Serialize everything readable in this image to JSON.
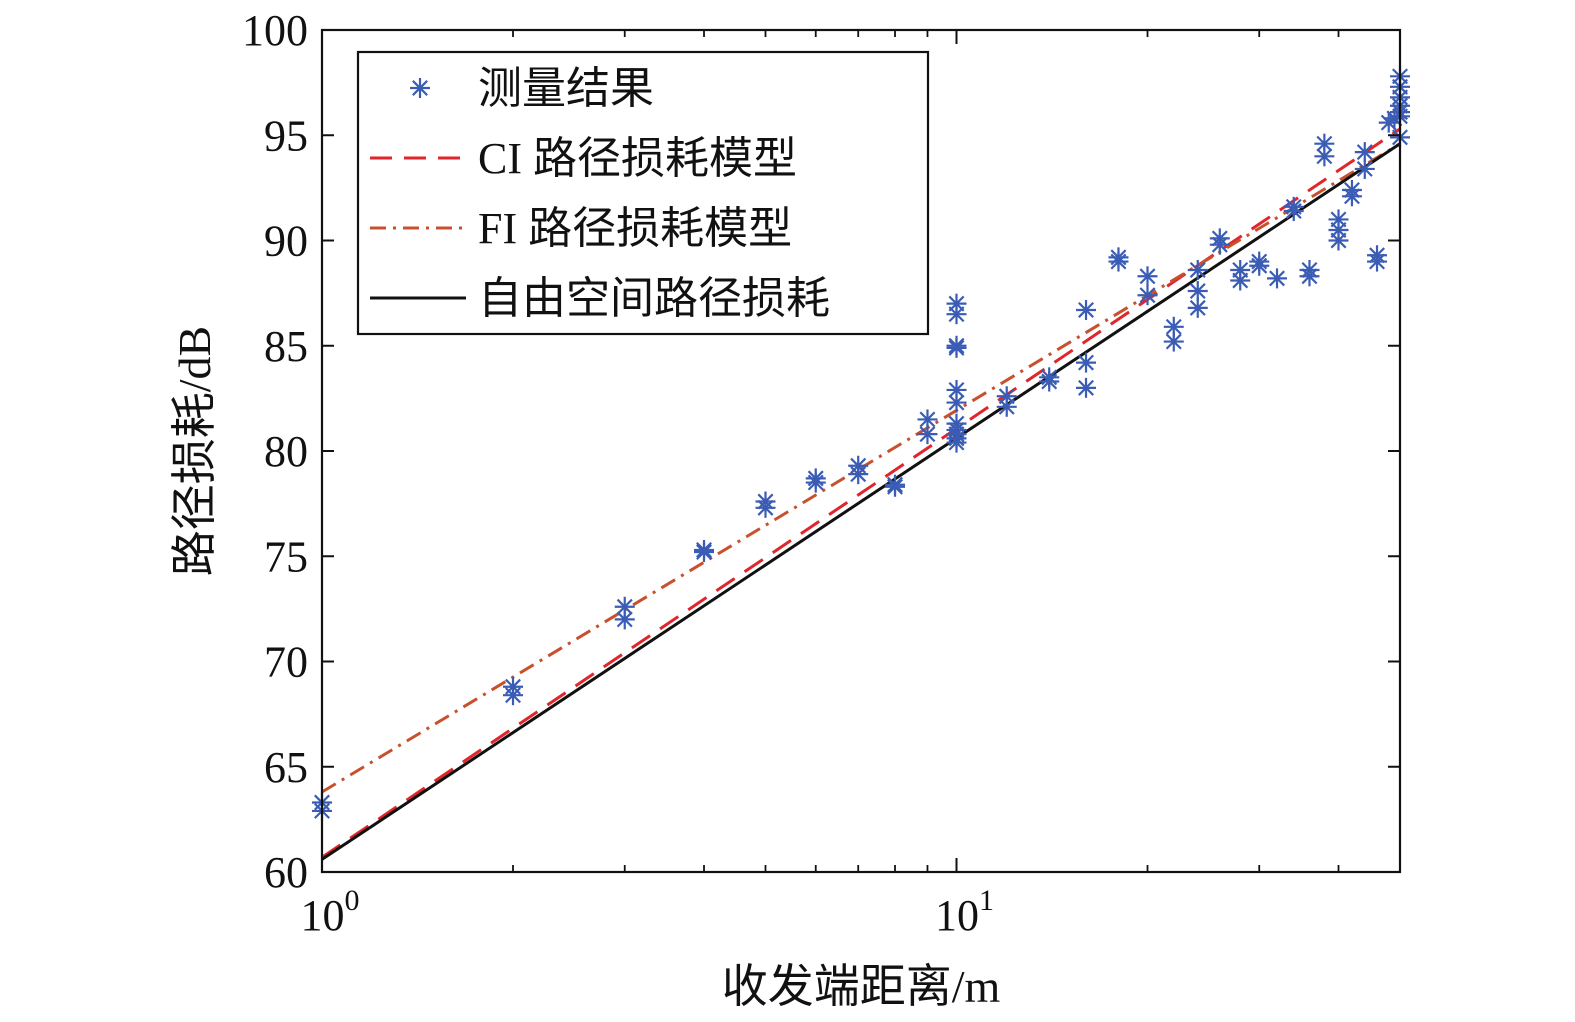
{
  "chart_data": {
    "type": "scatter",
    "title": "",
    "xlabel": "收发端距离/m",
    "ylabel": "路径损耗/dB",
    "x_scale": "log",
    "xlim": [
      1,
      50
    ],
    "ylim": [
      60,
      100
    ],
    "x_ticks": [
      {
        "value": 1,
        "base": "10",
        "exp": "0"
      },
      {
        "value": 10,
        "base": "10",
        "exp": "1"
      }
    ],
    "y_ticks": [
      60,
      65,
      70,
      75,
      80,
      85,
      90,
      95,
      100
    ],
    "grid": false,
    "legend_position": "top-left",
    "colors": {
      "measured": "#3a5cb5",
      "ci": "#e0262b",
      "fi": "#c8502c",
      "fspl": "#111111"
    },
    "series": [
      {
        "name": "测量结果",
        "kind": "marker",
        "marker": "asterisk",
        "x": [
          1,
          1,
          2,
          2,
          3,
          3,
          4,
          4,
          5,
          5,
          6,
          6,
          7,
          7,
          8,
          8,
          9,
          9,
          10,
          10,
          10,
          10,
          10,
          10,
          10,
          10,
          10,
          10,
          10,
          12,
          12,
          14,
          14,
          16,
          16,
          16,
          18,
          18,
          20,
          20,
          22,
          22,
          24,
          24,
          24,
          26,
          26,
          28,
          28,
          30,
          30,
          32,
          34,
          34,
          36,
          36,
          38,
          38,
          40,
          40,
          40,
          42,
          42,
          44,
          44,
          46,
          46,
          48,
          49,
          50,
          50,
          50,
          50,
          50,
          50,
          50
        ],
        "y": [
          63.3,
          62.9,
          68.8,
          68.4,
          72.6,
          72.0,
          75.2,
          75.3,
          77.6,
          77.3,
          78.7,
          78.5,
          79.3,
          78.9,
          78.4,
          78.3,
          81.5,
          80.8,
          87.0,
          86.5,
          85.0,
          84.9,
          82.9,
          82.3,
          81.3,
          80.8,
          80.4,
          80.6,
          81.0,
          82.6,
          82.1,
          83.5,
          83.3,
          86.7,
          84.2,
          83.0,
          89.2,
          89.0,
          88.3,
          87.4,
          85.9,
          85.2,
          88.6,
          87.6,
          86.8,
          90.1,
          89.8,
          88.6,
          88.1,
          89.0,
          88.8,
          88.2,
          91.6,
          91.4,
          88.6,
          88.3,
          94.6,
          94.0,
          91.0,
          90.5,
          90.0,
          92.4,
          92.1,
          94.2,
          93.4,
          89.3,
          89.0,
          95.6,
          95.8,
          97.8,
          97.3,
          96.8,
          96.4,
          96.1,
          95.9,
          94.9
        ]
      },
      {
        "name": "CI 路径损耗模型",
        "kind": "line",
        "dash": "dashed",
        "x": [
          1,
          50
        ],
        "y": [
          60.7,
          95.3
        ]
      },
      {
        "name": "FI 路径损耗模型",
        "kind": "line",
        "dash": "dashdot",
        "x": [
          1,
          50
        ],
        "y": [
          63.8,
          94.6
        ]
      },
      {
        "name": "自由空间路径损耗",
        "kind": "line",
        "dash": "solid",
        "x": [
          1,
          50
        ],
        "y": [
          60.6,
          94.6
        ]
      }
    ]
  }
}
